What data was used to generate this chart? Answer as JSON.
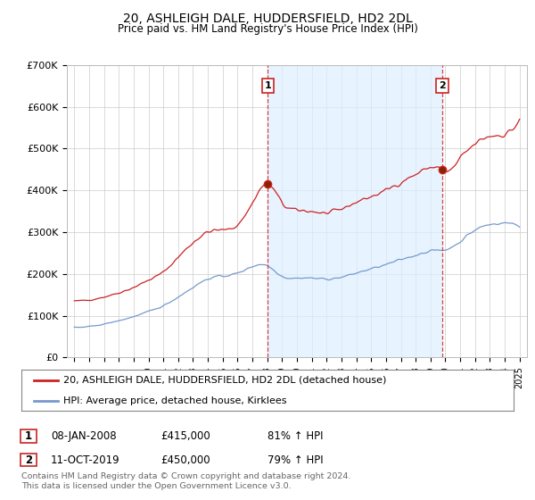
{
  "title": "20, ASHLEIGH DALE, HUDDERSFIELD, HD2 2DL",
  "subtitle": "Price paid vs. HM Land Registry's House Price Index (HPI)",
  "background_color": "#ffffff",
  "plot_bg_color": "#ffffff",
  "grid_color": "#cccccc",
  "shade_color": "#ddeeff",
  "ylim": [
    0,
    700000
  ],
  "yticks": [
    0,
    100000,
    200000,
    300000,
    400000,
    500000,
    600000,
    700000
  ],
  "ytick_labels": [
    "£0",
    "£100K",
    "£200K",
    "£300K",
    "£400K",
    "£500K",
    "£600K",
    "£700K"
  ],
  "red_line_color": "#cc2222",
  "blue_line_color": "#7799cc",
  "marker1_x": 2008.04,
  "marker1_y": 415000,
  "marker2_x": 2019.79,
  "marker2_y": 450000,
  "legend_entries": [
    "20, ASHLEIGH DALE, HUDDERSFIELD, HD2 2DL (detached house)",
    "HPI: Average price, detached house, Kirklees"
  ],
  "table_rows": [
    [
      "1",
      "08-JAN-2008",
      "£415,000",
      "81% ↑ HPI"
    ],
    [
      "2",
      "11-OCT-2019",
      "£450,000",
      "79% ↑ HPI"
    ]
  ],
  "footer": "Contains HM Land Registry data © Crown copyright and database right 2024.\nThis data is licensed under the Open Government Licence v3.0.",
  "xlim": [
    1994.5,
    2025.5
  ]
}
